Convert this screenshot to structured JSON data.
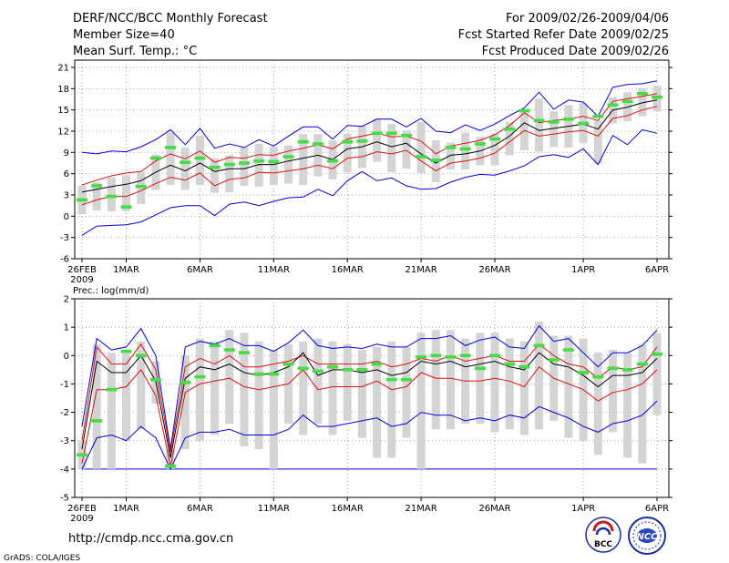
{
  "header": {
    "title": "DERF/NCC/BCC Monthly Forecast",
    "member_size": "Member Size=40",
    "variable1": "Mean Surf. Temp.: °C",
    "period": "For 2009/02/26-2009/04/06",
    "started": "Fcst Started Refer Date 2009/02/25",
    "produced": "Fcst Produced Date 2009/02/26"
  },
  "footer": {
    "url": "http://cmdp.ncc.cma.gov.cn",
    "credit": "GrADS: COLA/IGES",
    "logo_bcc": "BCC",
    "logo_ncc": "NCC"
  },
  "colors": {
    "box": "#d4d4d4",
    "median": "#44dd44",
    "mean": "#000000",
    "sd": "#dd1111",
    "extreme": "#0000dd",
    "axis": "#000000"
  },
  "chart_data": [
    {
      "type": "line",
      "title": "Mean Surf. Temp.: °C",
      "ylim": [
        -6,
        21
      ],
      "yticks": [
        -6,
        -3,
        0,
        3,
        6,
        9,
        12,
        15,
        18,
        21
      ],
      "xlim": [
        0,
        39
      ],
      "xticks": [
        {
          "x": 0,
          "label": "26FEB"
        },
        {
          "x": 3,
          "label": "1MAR"
        },
        {
          "x": 8,
          "label": "6MAR"
        },
        {
          "x": 13,
          "label": "11MAR"
        },
        {
          "x": 18,
          "label": "16MAR"
        },
        {
          "x": 23,
          "label": "21MAR"
        },
        {
          "x": 28,
          "label": "26MAR"
        },
        {
          "x": 34,
          "label": "1APR"
        },
        {
          "x": 39,
          "label": "6APR"
        }
      ],
      "year_label": "2009",
      "grid": true,
      "series": [
        {
          "name": "max",
          "values": [
            9,
            8.8,
            9.2,
            9.1,
            9.8,
            10.8,
            12.2,
            10.1,
            12.4,
            9.6,
            10.2,
            9.7,
            10.8,
            9.9,
            11.3,
            12.6,
            12.6,
            10.9,
            12.8,
            12.7,
            13.7,
            13.7,
            12.6,
            13.8,
            12,
            11.8,
            12.9,
            12.1,
            13,
            14.2,
            15.3,
            17.5,
            15.1,
            16.4,
            16.1,
            14.1,
            18.2,
            18.6,
            18.7,
            19.1
          ]
        },
        {
          "name": "mean_plus_sd",
          "values": [
            4.4,
            5.1,
            5.7,
            6.1,
            6.3,
            7.8,
            8.8,
            8.1,
            9.2,
            7.6,
            8.3,
            8.2,
            8.7,
            8.6,
            9.2,
            9.6,
            10.1,
            9.5,
            10.9,
            11.3,
            11.7,
            11.2,
            11.3,
            10.6,
            8.8,
            9.9,
            10.3,
            10.7,
            11.5,
            12.8,
            14.6,
            13.2,
            13.5,
            13.7,
            14.1,
            13.5,
            16.2,
            16.6,
            16.9,
            17.3
          ]
        },
        {
          "name": "mean",
          "values": [
            3.4,
            3.8,
            4.2,
            4.5,
            5,
            6.2,
            7.2,
            6.4,
            7.5,
            6.3,
            6.7,
            6.7,
            7.3,
            7.3,
            7.8,
            8.2,
            8.6,
            8,
            9.5,
            9.8,
            10.5,
            9.8,
            10.3,
            8.8,
            7.5,
            8.6,
            8.8,
            9.2,
            10,
            11.3,
            13.2,
            12.1,
            12.4,
            12.7,
            13,
            12.3,
            15,
            15.4,
            16,
            16.4
          ]
        },
        {
          "name": "mean_minus_sd",
          "values": [
            1.6,
            2.3,
            2.8,
            2.8,
            3.6,
            4.6,
            5.5,
            5.1,
            6.1,
            4.3,
            5.2,
            5.4,
            6.2,
            6.1,
            6.4,
            6.7,
            7.2,
            6.7,
            8.2,
            8.4,
            9.1,
            8.8,
            9.3,
            7.8,
            6.4,
            7.5,
            7.8,
            8.2,
            8.9,
            10.5,
            12.1,
            11.3,
            11.6,
            11.9,
            12.1,
            11.3,
            13.8,
            14.2,
            15,
            15.5
          ]
        },
        {
          "name": "min",
          "values": [
            -2.7,
            -1.4,
            -1.3,
            -1.2,
            -0.8,
            0.2,
            1.2,
            1.5,
            1.5,
            0.1,
            1.7,
            2,
            1.5,
            2.1,
            2.6,
            2.7,
            3.8,
            2.9,
            5,
            6.3,
            5,
            5.4,
            4.3,
            3.8,
            3.9,
            4.8,
            5.5,
            5.9,
            5.8,
            6.4,
            7.1,
            8.4,
            8.7,
            8.3,
            9.5,
            7.3,
            11.4,
            10.1,
            12.2,
            11.7
          ]
        },
        {
          "name": "box_top",
          "values": [
            4.3,
            4.8,
            5.5,
            5.8,
            6.2,
            8.7,
            11.8,
            9.7,
            11.4,
            8.2,
            8.6,
            9.7,
            10.2,
            9.8,
            10,
            11.6,
            11.6,
            10.7,
            11.6,
            12.7,
            13.7,
            13,
            12.1,
            13.3,
            10.7,
            10.4,
            11.8,
            11.2,
            11.7,
            13.3,
            14.8,
            16.6,
            14.8,
            15.7,
            16,
            13.5,
            16.8,
            17.5,
            18.1,
            18.4
          ]
        },
        {
          "name": "box_bottom",
          "values": [
            0.3,
            0.8,
            0.7,
            0.7,
            1.7,
            3.7,
            4.4,
            3.7,
            4.4,
            3.3,
            3.4,
            4.3,
            4.2,
            4.4,
            4.6,
            4.4,
            5.6,
            5.2,
            6.2,
            6.8,
            7.7,
            6.2,
            6.7,
            6.1,
            4.8,
            6.6,
            6.6,
            7.2,
            7.2,
            8.6,
            9.3,
            9.1,
            9.8,
            9.7,
            10.3,
            7.4,
            13.1,
            13.4,
            14.1,
            14.8
          ]
        },
        {
          "name": "median",
          "values": [
            2.3,
            4.3,
            2.8,
            1.3,
            4.2,
            8.2,
            9.7,
            7.6,
            8.2,
            6.9,
            7.3,
            7.5,
            7.8,
            7.7,
            8.4,
            10.5,
            10.2,
            7.8,
            10.5,
            10.6,
            11.7,
            11.7,
            11.4,
            8.4,
            7.9,
            9.7,
            9.5,
            10.2,
            10.9,
            12.3,
            14.9,
            13.5,
            13.3,
            13.7,
            13.1,
            14.1,
            15.7,
            16.2,
            17.3,
            16.8
          ]
        }
      ]
    },
    {
      "type": "line",
      "title": "Prec.: log(mm/d)",
      "ylim": [
        -5,
        2
      ],
      "yticks": [
        -5,
        -4,
        -3,
        -2,
        -1,
        0,
        1,
        2
      ],
      "xlim": [
        0,
        39
      ],
      "xticks": [
        {
          "x": 0,
          "label": "26FEB"
        },
        {
          "x": 3,
          "label": "1MAR"
        },
        {
          "x": 8,
          "label": "6MAR"
        },
        {
          "x": 13,
          "label": "11MAR"
        },
        {
          "x": 18,
          "label": "16MAR"
        },
        {
          "x": 23,
          "label": "21MAR"
        },
        {
          "x": 28,
          "label": "26MAR"
        },
        {
          "x": 34,
          "label": "1APR"
        },
        {
          "x": 39,
          "label": "6APR"
        }
      ],
      "year_label": "2009",
      "grid": true,
      "baseline": -4,
      "series": [
        {
          "name": "max",
          "values": [
            -2.5,
            0.6,
            0.2,
            0.3,
            0.95,
            0,
            -3.3,
            0.3,
            0.5,
            0.4,
            0.6,
            0.35,
            0.35,
            0.15,
            0.45,
            0.9,
            0.35,
            0.25,
            0.3,
            0.25,
            0.4,
            0.3,
            0.3,
            0.6,
            0.6,
            0.7,
            0.35,
            0.55,
            0.65,
            0.3,
            0.25,
            1.05,
            0.5,
            0.6,
            0.1,
            -0.4,
            0.1,
            0.1,
            0.35,
            0.9
          ]
        },
        {
          "name": "mean_plus_sd",
          "values": [
            -3,
            0.3,
            -0.3,
            -0.3,
            0.4,
            -0.5,
            -3.4,
            -0.4,
            -0.1,
            -0.3,
            0,
            -0.4,
            -0.4,
            -0.3,
            -0.2,
            0,
            -0.3,
            -0.3,
            -0.3,
            -0.3,
            -0.2,
            -0.4,
            -0.3,
            -0.1,
            -0.2,
            0,
            -0.2,
            -0.1,
            0,
            -0.2,
            -0.2,
            0.4,
            0,
            -0.3,
            -0.4,
            -0.8,
            -0.4,
            -0.5,
            -0.4,
            0.3
          ]
        },
        {
          "name": "mean",
          "values": [
            -3.3,
            -0.2,
            -0.6,
            -0.6,
            0,
            -0.9,
            -3.6,
            -0.8,
            -0.4,
            -0.5,
            -0.3,
            -0.6,
            -0.7,
            -0.6,
            -0.4,
            0.1,
            -0.7,
            -0.5,
            -0.5,
            -0.6,
            -0.5,
            -0.7,
            -0.6,
            -0.2,
            -0.3,
            -0.2,
            -0.4,
            -0.3,
            -0.2,
            -0.4,
            -0.5,
            0.1,
            -0.3,
            -0.4,
            -0.7,
            -1.1,
            -0.7,
            -0.7,
            -0.6,
            -0.1
          ]
        },
        {
          "name": "mean_minus_sd",
          "values": [
            -3.8,
            -1.2,
            -1.2,
            -1.1,
            -0.5,
            -1.4,
            -3.9,
            -1.3,
            -1,
            -0.9,
            -0.8,
            -1.1,
            -1.2,
            -1.1,
            -1,
            -0.5,
            -1.2,
            -1.1,
            -1.1,
            -1.1,
            -0.9,
            -1.2,
            -1.1,
            -0.6,
            -0.8,
            -0.8,
            -0.9,
            -0.9,
            -0.8,
            -0.9,
            -1.1,
            -0.4,
            -0.8,
            -1,
            -1.2,
            -1.6,
            -1.3,
            -1.2,
            -1,
            -0.5
          ]
        },
        {
          "name": "min",
          "values": [
            -4,
            -2.9,
            -2.8,
            -3.0,
            -2.5,
            -2.9,
            -4,
            -2.9,
            -2.7,
            -2.7,
            -2.6,
            -2.8,
            -2.8,
            -2.8,
            -2.6,
            -2.1,
            -2.5,
            -2.5,
            -2.4,
            -2.3,
            -2.2,
            -2.5,
            -2.4,
            -2.0,
            -2.1,
            -2.1,
            -2.3,
            -2.2,
            -2.3,
            -2.1,
            -2.2,
            -1.8,
            -2.0,
            -2.2,
            -2.5,
            -2.7,
            -2.4,
            -2.3,
            -2.1,
            -1.6
          ]
        },
        {
          "name": "box_top",
          "values": [
            -3,
            0.4,
            0.1,
            0.2,
            0.5,
            -0.2,
            -3.3,
            0,
            0.6,
            0.5,
            0.9,
            0.8,
            0.5,
            0.2,
            0.4,
            0.5,
            0.6,
            0.5,
            0.4,
            0.2,
            0.3,
            0.5,
            0.3,
            0.8,
            0.9,
            0.9,
            0.6,
            0.8,
            0.8,
            0.6,
            0.5,
            1.2,
            0.7,
            0.7,
            0.6,
            0.1,
            0.2,
            0.1,
            0.4,
            0.8
          ]
        },
        {
          "name": "box_bottom",
          "values": [
            -4,
            -4,
            -4,
            -3,
            -2.6,
            -1.7,
            -4,
            -3.3,
            -3,
            -2.8,
            -2.4,
            -3.2,
            -3.3,
            -4,
            -2.4,
            -2.8,
            -2.4,
            -2.8,
            -2.3,
            -2.9,
            -3.6,
            -3.6,
            -2.9,
            -4,
            -2.6,
            -2.6,
            -2.4,
            -2.4,
            -2.7,
            -2.6,
            -2.8,
            -2.6,
            -2.3,
            -2.9,
            -3,
            -3.5,
            -2.7,
            -3.6,
            -3.8,
            -2.1
          ]
        },
        {
          "name": "median",
          "values": [
            -3.5,
            -2.3,
            -1.2,
            0.15,
            0,
            -0.85,
            -3.9,
            -0.95,
            -0.75,
            0.35,
            0.2,
            0.1,
            -0.65,
            -0.65,
            -0.3,
            -0.45,
            -0.55,
            -0.4,
            -0.5,
            -0.5,
            -0.3,
            -0.85,
            -0.85,
            -0.05,
            0,
            -0.05,
            0,
            -0.45,
            0,
            -0.3,
            -0.4,
            0.35,
            -0.15,
            0.2,
            -0.6,
            -0.75,
            -0.45,
            -0.5,
            -0.3,
            0.05
          ]
        }
      ]
    }
  ]
}
